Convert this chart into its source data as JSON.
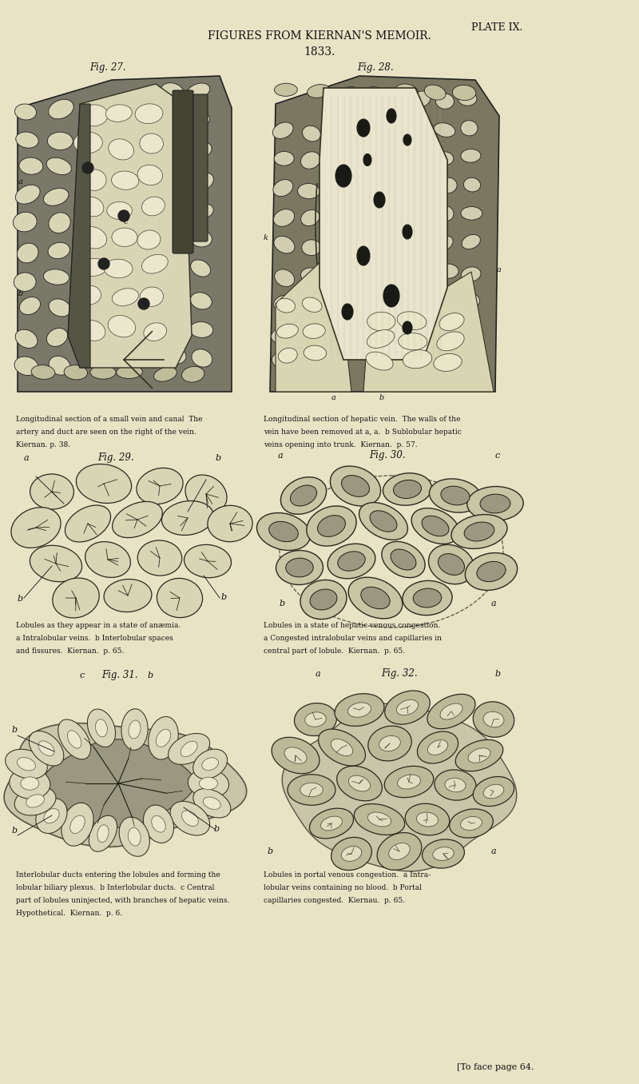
{
  "page_bg": "#e8e3c5",
  "figsize": [
    8.0,
    13.56
  ],
  "dpi": 100,
  "title1": "FIGURES FROM KIERNAN'S MEMOIR.",
  "title2": "1833.",
  "plate_label": "PLATE IX.",
  "fig_labels": [
    "Fig. 27.",
    "Fig. 28.",
    "Fig. 29.",
    "Fig. 30.",
    "Fig. 31.",
    "Fig. 32."
  ],
  "caption1_lines": [
    "Longitudinal section of a small vein and canal  The",
    "artery and duct are seen on the right of the vein.",
    "Kiernan. p. 38."
  ],
  "caption2_lines": [
    "Longitudinal section of hepatic vein.  The walls of the",
    "vein have been removed at a, a.  b Sublobular hepatic",
    "veins opening into trunk.  Kiernan.  p. 57."
  ],
  "caption3_lines": [
    "Lobules as they appear in a state of anæmia.",
    "a Intralobular veins.  b Interlobular spaces",
    "and fissures.  Kiernan.  p. 65."
  ],
  "caption4_lines": [
    "Lobules in a state of hepatic venous congestion.",
    "a Congested intralobular veins and capillaries in",
    "central part of lobule.  Kiernan.  p. 65."
  ],
  "caption5_lines": [
    "Interlobular ducts entering the lobules and forming the",
    "lobular biliary plexus.  b Interlobular ducts.  c Central",
    "part of lobules uninjected, with branches of hepatic veins.",
    "Hypothetical.  Kiernan.  p. 6."
  ],
  "caption6_lines": [
    "Lobules in portal venous congestion.  a Intra-",
    "lobular veins containing no blood.  b Portal",
    "capillaries congested.  Kiernau.  p. 65."
  ],
  "footer": "[To face page 64.",
  "text_color": "#111111"
}
